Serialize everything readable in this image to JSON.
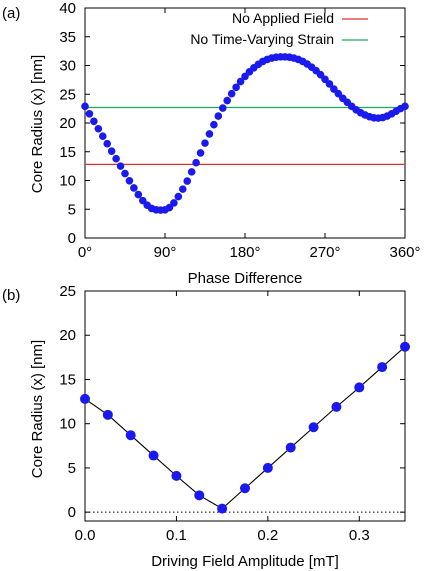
{
  "colors": {
    "no_field": "#e0302c",
    "no_strain": "#22a85a",
    "marker": "#1a1aee",
    "axis": "#000000"
  },
  "chart_data": [
    {
      "panel": "(a)",
      "type": "scatter",
      "xlabel": "Phase Difference",
      "ylabel": "Core Radius (x) [nm]",
      "xlim": [
        0,
        360
      ],
      "ylim": [
        0,
        40
      ],
      "xticks": [
        0,
        90,
        180,
        270,
        360
      ],
      "xtick_labels": [
        "0°",
        "90°",
        "180°",
        "270°",
        "360°"
      ],
      "yticks": [
        0,
        5,
        10,
        15,
        20,
        25,
        30,
        35,
        40
      ],
      "ytick_labels": [
        "0",
        "5",
        "10",
        "15",
        "20",
        "25",
        "30",
        "35",
        "40"
      ],
      "grid": false,
      "legend_position": "top-right",
      "reference_lines": [
        {
          "name": "No Applied Field",
          "y": 12.8,
          "color": "#e0302c"
        },
        {
          "name": "No Time-Varying Strain",
          "y": 22.7,
          "color": "#22a85a"
        }
      ],
      "series": [
        {
          "marker": "circle",
          "x_step": 5,
          "x": [
            0,
            5,
            10,
            15,
            20,
            25,
            30,
            35,
            40,
            45,
            50,
            55,
            60,
            65,
            70,
            75,
            80,
            85,
            90,
            95,
            100,
            105,
            110,
            115,
            120,
            125,
            130,
            135,
            140,
            145,
            150,
            155,
            160,
            165,
            170,
            175,
            180,
            185,
            190,
            195,
            200,
            205,
            210,
            215,
            220,
            225,
            230,
            235,
            240,
            245,
            250,
            255,
            260,
            265,
            270,
            275,
            280,
            285,
            290,
            295,
            300,
            305,
            310,
            315,
            320,
            325,
            330,
            335,
            340,
            345,
            350,
            355,
            360
          ],
          "y": [
            22.9,
            21.6,
            20.3,
            19.0,
            17.7,
            16.4,
            15.1,
            13.8,
            12.5,
            11.2,
            9.95,
            8.7,
            7.55,
            6.5,
            5.7,
            5.15,
            4.9,
            4.85,
            4.9,
            5.3,
            6.1,
            7.2,
            8.5,
            9.9,
            11.5,
            13.1,
            14.8,
            16.5,
            18.1,
            19.7,
            21.2,
            22.6,
            23.9,
            25.1,
            26.2,
            27.2,
            28.1,
            28.9,
            29.6,
            30.2,
            30.7,
            31.05,
            31.3,
            31.45,
            31.5,
            31.5,
            31.45,
            31.3,
            31.05,
            30.7,
            30.25,
            29.7,
            29.1,
            28.4,
            27.6,
            26.8,
            25.9,
            25.1,
            24.3,
            23.6,
            22.9,
            22.3,
            21.8,
            21.4,
            21.1,
            20.9,
            20.85,
            20.95,
            21.2,
            21.6,
            22.05,
            22.5,
            22.9
          ]
        }
      ]
    },
    {
      "panel": "(b)",
      "type": "line",
      "xlabel": "Driving Field Amplitude [mT]",
      "ylabel": "Core Radius (x) [nm]",
      "xlim": [
        0,
        0.35
      ],
      "ylim": [
        -1,
        25
      ],
      "xticks": [
        0,
        0.1,
        0.2,
        0.3
      ],
      "xtick_labels": [
        "0.0",
        "0.1",
        "0.2",
        "0.3"
      ],
      "yticks": [
        0,
        5,
        10,
        15,
        20,
        25
      ],
      "ytick_labels": [
        "0",
        "5",
        "10",
        "15",
        "20",
        "25"
      ],
      "grid": false,
      "zero_line": "dotted",
      "series": [
        {
          "marker": "circle",
          "x": [
            0.0,
            0.025,
            0.05,
            0.075,
            0.1,
            0.125,
            0.15,
            0.175,
            0.2,
            0.225,
            0.25,
            0.275,
            0.3,
            0.325,
            0.35
          ],
          "y": [
            12.8,
            11.0,
            8.7,
            6.4,
            4.1,
            1.9,
            0.4,
            2.7,
            5.0,
            7.3,
            9.6,
            11.9,
            14.1,
            16.4,
            18.7
          ]
        }
      ]
    }
  ]
}
